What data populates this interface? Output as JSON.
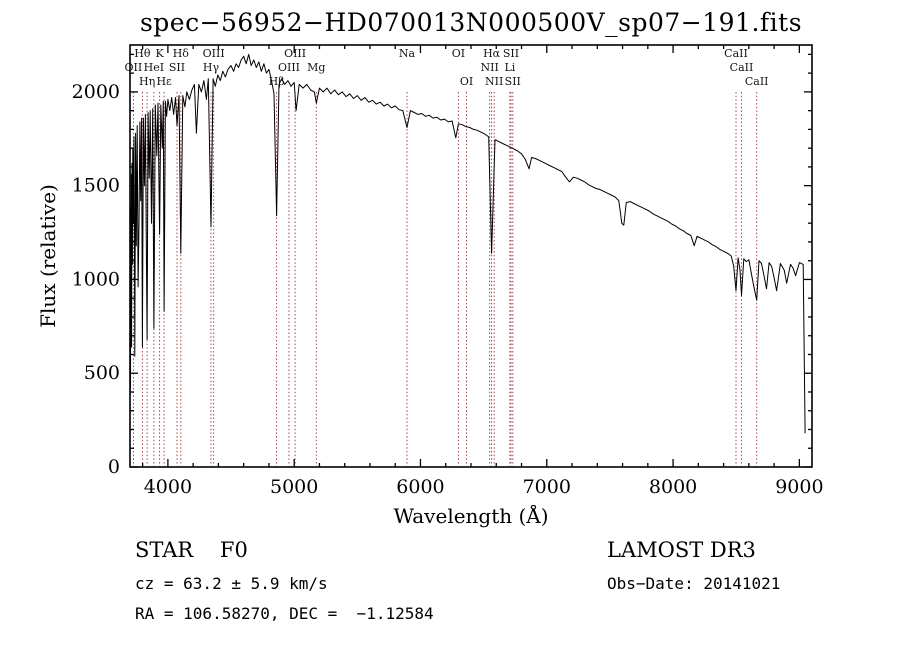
{
  "chart_data": {
    "type": "line",
    "title": "spec−56952−HD070013N000500V_sp07−191.fits",
    "xlabel": "Wavelength (Å)",
    "ylabel": "Flux (relative)",
    "xlim": [
      3700,
      9100
    ],
    "ylim": [
      0,
      2250
    ],
    "x_ticks": [
      4000,
      5000,
      6000,
      7000,
      8000,
      9000
    ],
    "y_ticks": [
      0,
      500,
      1000,
      1500,
      2000
    ],
    "x_minor_step": 200,
    "y_minor_step": 100,
    "colors": {
      "spectrum": "#000000",
      "line_marker": "#993333"
    },
    "series": [
      {
        "name": "flux",
        "x": [
          3700,
          3702,
          3704,
          3706,
          3708,
          3710,
          3713,
          3716,
          3719,
          3722,
          3727,
          3732,
          3738,
          3744,
          3750,
          3757,
          3764,
          3771,
          3778,
          3785,
          3792,
          3798,
          3806,
          3814,
          3822,
          3828,
          3835,
          3843,
          3852,
          3860,
          3870,
          3880,
          3889,
          3900,
          3912,
          3922,
          3934,
          3944,
          3956,
          3964,
          3970,
          3980,
          3990,
          4000,
          4015,
          4030,
          4045,
          4060,
          4072,
          4088,
          4102,
          4118,
          4135,
          4150,
          4170,
          4190,
          4210,
          4226,
          4245,
          4265,
          4285,
          4305,
          4320,
          4341,
          4358,
          4375,
          4395,
          4415,
          4435,
          4455,
          4475,
          4500,
          4520,
          4540,
          4560,
          4580,
          4600,
          4620,
          4640,
          4660,
          4680,
          4700,
          4720,
          4740,
          4760,
          4780,
          4800,
          4820,
          4840,
          4861,
          4880,
          4900,
          4925,
          4950,
          4975,
          5000,
          5015,
          5040,
          5070,
          5100,
          5130,
          5160,
          5175,
          5200,
          5230,
          5260,
          5290,
          5320,
          5350,
          5380,
          5410,
          5440,
          5470,
          5500,
          5530,
          5560,
          5590,
          5620,
          5650,
          5680,
          5710,
          5740,
          5770,
          5800,
          5830,
          5860,
          5893,
          5920,
          5950,
          5980,
          6010,
          6040,
          6070,
          6100,
          6130,
          6160,
          6190,
          6220,
          6250,
          6280,
          6300,
          6330,
          6360,
          6390,
          6420,
          6450,
          6480,
          6510,
          6540,
          6563,
          6590,
          6620,
          6650,
          6680,
          6710,
          6740,
          6770,
          6800,
          6830,
          6860,
          6880,
          6910,
          6940,
          6970,
          7000,
          7030,
          7060,
          7090,
          7120,
          7150,
          7180,
          7210,
          7240,
          7270,
          7300,
          7330,
          7360,
          7390,
          7420,
          7450,
          7480,
          7510,
          7540,
          7570,
          7594,
          7610,
          7630,
          7660,
          7690,
          7720,
          7750,
          7780,
          7810,
          7840,
          7870,
          7900,
          7930,
          7960,
          7990,
          8020,
          8050,
          8080,
          8110,
          8140,
          8167,
          8190,
          8220,
          8250,
          8280,
          8310,
          8340,
          8370,
          8400,
          8430,
          8460,
          8480,
          8498,
          8515,
          8530,
          8542,
          8560,
          8580,
          8600,
          8620,
          8640,
          8662,
          8680,
          8700,
          8720,
          8740,
          8760,
          8780,
          8800,
          8820,
          8850,
          8880,
          8900,
          8930,
          8950,
          8970,
          9000,
          9030,
          9045
        ],
        "y": [
          170,
          1100,
          420,
          1380,
          820,
          1560,
          640,
          1620,
          1080,
          1700,
          1300,
          1760,
          590,
          1780,
          1180,
          1820,
          960,
          1300,
          1840,
          1420,
          1860,
          640,
          1860,
          1500,
          1880,
          1260,
          680,
          1890,
          1540,
          1900,
          1300,
          1910,
          740,
          1930,
          1660,
          1940,
          1240,
          1930,
          1700,
          1950,
          830,
          1950,
          1870,
          1960,
          1900,
          1970,
          1880,
          1970,
          1820,
          1980,
          1140,
          1980,
          1920,
          2000,
          1960,
          2010,
          2040,
          1780,
          2040,
          2000,
          2060,
          1960,
          2070,
          1280,
          2070,
          2030,
          2090,
          2060,
          2110,
          2080,
          2120,
          2140,
          2110,
          2150,
          2130,
          2170,
          2190,
          2150,
          2200,
          2140,
          2170,
          2130,
          2160,
          2110,
          2150,
          2100,
          2120,
          2060,
          1990,
          1340,
          2040,
          2070,
          2040,
          2060,
          2030,
          2050,
          1900,
          2040,
          2020,
          2040,
          2010,
          2000,
          1940,
          2020,
          2000,
          2020,
          1990,
          2010,
          1985,
          2000,
          1975,
          1990,
          1965,
          1980,
          1955,
          1970,
          1945,
          1955,
          1935,
          1945,
          1925,
          1935,
          1915,
          1925,
          1905,
          1900,
          1810,
          1900,
          1890,
          1880,
          1885,
          1870,
          1875,
          1860,
          1865,
          1850,
          1855,
          1840,
          1845,
          1755,
          1830,
          1825,
          1815,
          1810,
          1800,
          1795,
          1785,
          1775,
          1760,
          1140,
          1745,
          1735,
          1725,
          1715,
          1705,
          1695,
          1685,
          1670,
          1640,
          1590,
          1650,
          1645,
          1635,
          1625,
          1615,
          1605,
          1595,
          1585,
          1575,
          1545,
          1520,
          1545,
          1540,
          1530,
          1520,
          1505,
          1495,
          1485,
          1480,
          1470,
          1460,
          1450,
          1440,
          1420,
          1300,
          1290,
          1410,
          1415,
          1405,
          1395,
          1385,
          1375,
          1365,
          1350,
          1340,
          1330,
          1320,
          1310,
          1295,
          1285,
          1270,
          1260,
          1245,
          1235,
          1180,
          1230,
          1220,
          1210,
          1200,
          1185,
          1175,
          1160,
          1150,
          1140,
          1125,
          1070,
          940,
          1115,
          1050,
          915,
          1110,
          1095,
          1105,
          1030,
          960,
          890,
          1100,
          1085,
          1020,
          950,
          1090,
          1070,
          1010,
          940,
          1085,
          1050,
          980,
          1080,
          1060,
          1020,
          1090,
          1080,
          180
        ]
      }
    ],
    "spectral_lines": [
      {
        "label": "Hθ",
        "wavelength": 3798,
        "row": 0
      },
      {
        "label": "K",
        "wavelength": 3934,
        "row": 0
      },
      {
        "label": "Hδ",
        "wavelength": 4102,
        "row": 0
      },
      {
        "label": "OIII",
        "wavelength": 4363,
        "row": 0
      },
      {
        "label": "OIII",
        "wavelength": 5007,
        "row": 0
      },
      {
        "label": "Na",
        "wavelength": 5893,
        "row": 0
      },
      {
        "label": "OI",
        "wavelength": 6300,
        "row": 0
      },
      {
        "label": "Hα",
        "wavelength": 6563,
        "row": 0
      },
      {
        "label": "SII",
        "wavelength": 6717,
        "row": 0
      },
      {
        "label": "CaII",
        "wavelength": 8498,
        "row": 0
      },
      {
        "label": "OII",
        "wavelength": 3727,
        "row": 1
      },
      {
        "label": "HeI",
        "wavelength": 3889,
        "row": 1
      },
      {
        "label": "SII",
        "wavelength": 4072,
        "row": 1
      },
      {
        "label": "Hγ",
        "wavelength": 4341,
        "row": 1
      },
      {
        "label": "OIII",
        "wavelength": 4959,
        "row": 1
      },
      {
        "label": "Mg",
        "wavelength": 5175,
        "row": 1
      },
      {
        "label": "NII",
        "wavelength": 6548,
        "row": 1
      },
      {
        "label": "Li",
        "wavelength": 6708,
        "row": 1
      },
      {
        "label": "CaII",
        "wavelength": 8542,
        "row": 1
      },
      {
        "label": "Hη",
        "wavelength": 3835,
        "row": 2
      },
      {
        "label": "Hε",
        "wavelength": 3970,
        "row": 2
      },
      {
        "label": "Hβ",
        "wavelength": 4861,
        "row": 2
      },
      {
        "label": "OI",
        "wavelength": 6364,
        "row": 2
      },
      {
        "label": "NII",
        "wavelength": 6584,
        "row": 2
      },
      {
        "label": "SII",
        "wavelength": 6731,
        "row": 2
      },
      {
        "label": "CaII",
        "wavelength": 8662,
        "row": 2
      }
    ]
  },
  "annotations": {
    "class_label": "STAR    F0",
    "survey": "LAMOST DR3",
    "cz": "cz = 63.2 ± 5.9 km/s",
    "obs_date": "Obs−Date: 20141021",
    "coords": "RA = 106.58270, DEC =  −1.12584"
  }
}
